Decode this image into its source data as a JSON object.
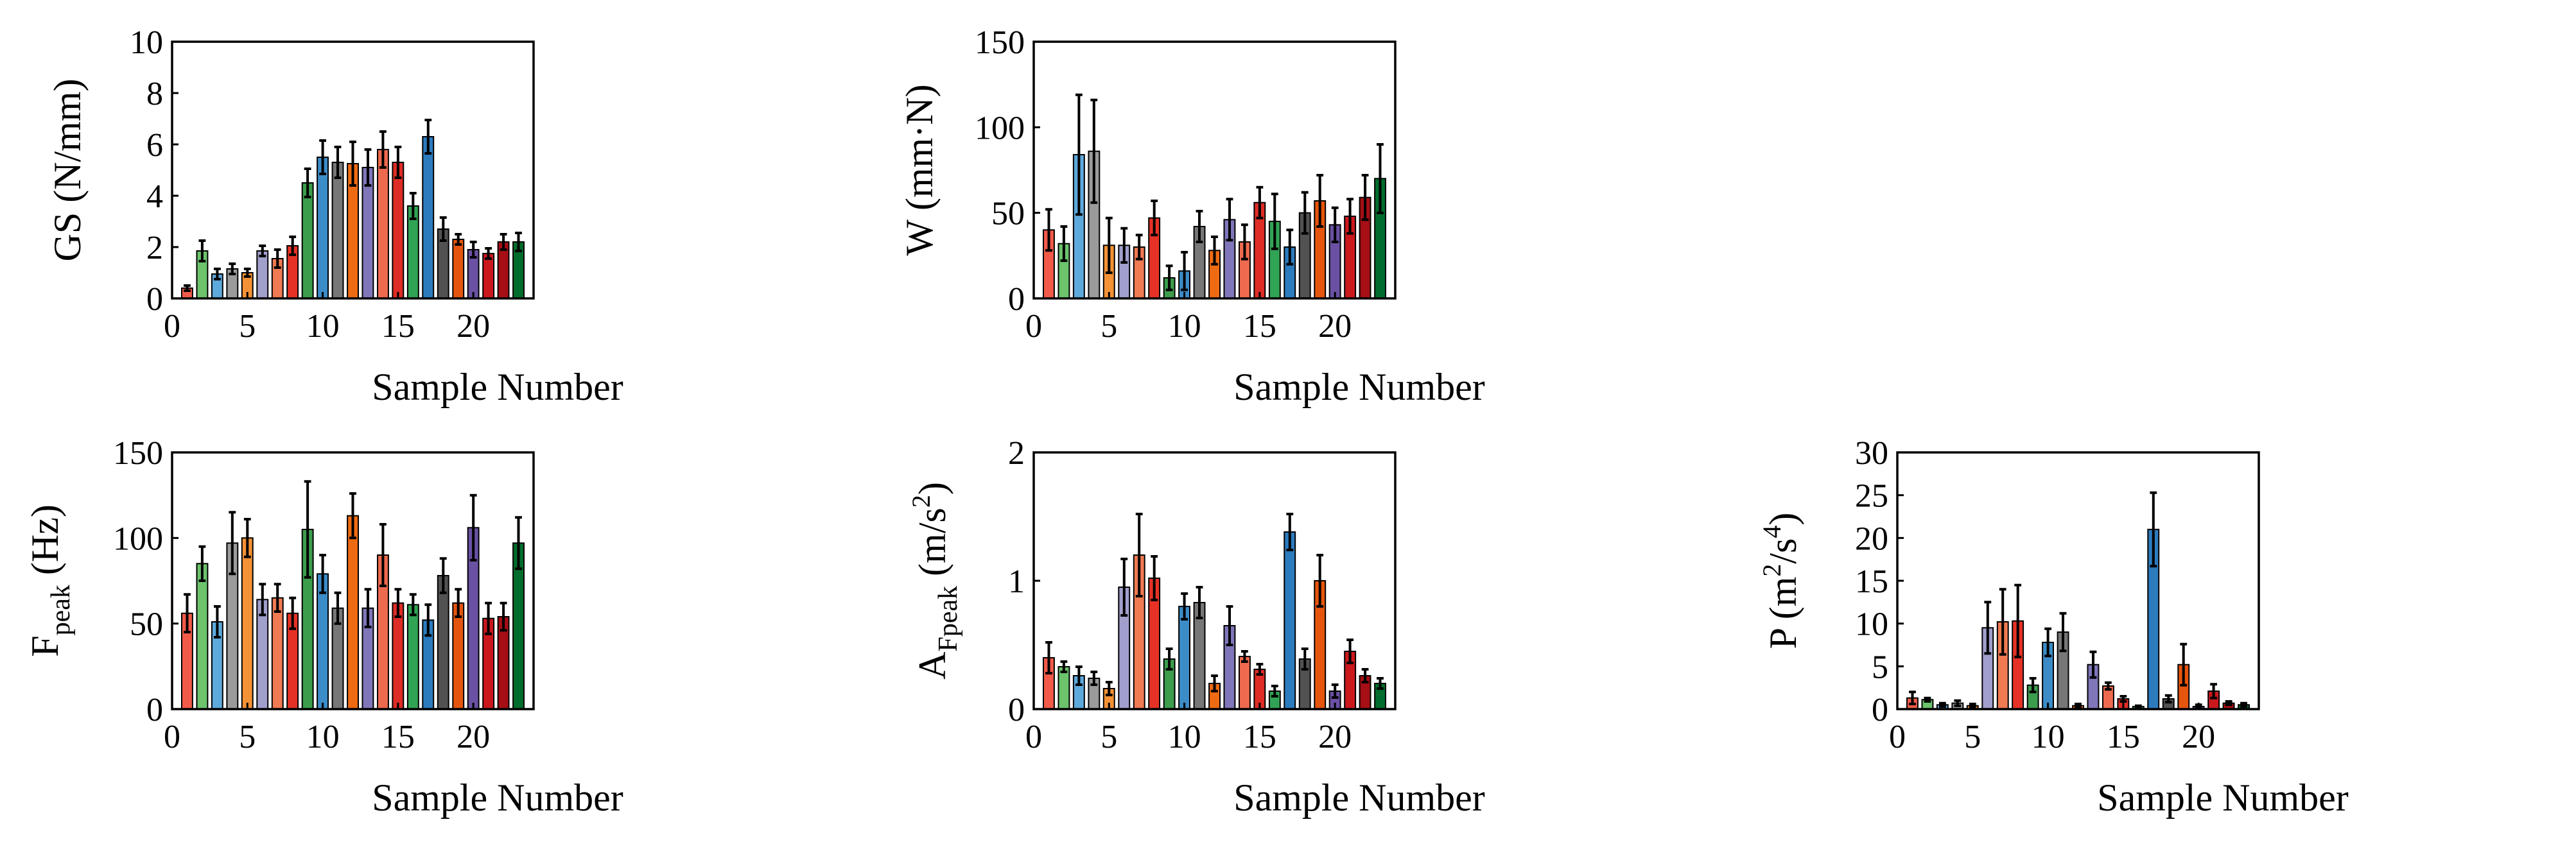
{
  "colors": {
    "palette": [
      "#f15a49",
      "#6cc36c",
      "#5ea9dc",
      "#9b9b9b",
      "#f59235",
      "#a19fcc",
      "#f07a52",
      "#e63226",
      "#3c9d4d",
      "#3c8cc8",
      "#777777",
      "#ef6b13",
      "#7f77ba",
      "#ee6a4e",
      "#de2d26",
      "#31a354",
      "#2c7bbd",
      "#525252",
      "#e6550d",
      "#6a51a3",
      "#cb181d",
      "#a50f15",
      "#006d2c"
    ]
  },
  "chart_data": [
    {
      "id": "gs",
      "type": "bar",
      "title": "",
      "xlabel": "Sample Number",
      "ylabel": "GS (N/mm)",
      "xlim": [
        0,
        24
      ],
      "ylim": [
        0,
        10
      ],
      "xticks": [
        "0",
        "5",
        "10",
        "15",
        "20"
      ],
      "yticks": [
        "0",
        "2",
        "4",
        "6",
        "8",
        "10"
      ],
      "x": [
        1,
        2,
        3,
        4,
        5,
        6,
        7,
        8,
        9,
        10,
        11,
        12,
        13,
        14,
        15,
        16,
        17,
        18,
        19,
        20,
        21,
        22,
        23
      ],
      "values": [
        0.4,
        1.85,
        0.95,
        1.15,
        1.0,
        1.85,
        1.55,
        2.05,
        4.5,
        5.5,
        5.3,
        5.25,
        5.1,
        5.8,
        5.3,
        3.6,
        6.3,
        2.7,
        2.3,
        1.9,
        1.75,
        2.2,
        2.2
      ],
      "errors": [
        0.1,
        0.4,
        0.2,
        0.2,
        0.15,
        0.2,
        0.35,
        0.35,
        0.55,
        0.65,
        0.6,
        0.85,
        0.7,
        0.7,
        0.6,
        0.5,
        0.65,
        0.45,
        0.2,
        0.3,
        0.2,
        0.3,
        0.35
      ]
    },
    {
      "id": "w",
      "type": "bar",
      "title": "",
      "xlabel": "Sample Number",
      "ylabel": "W (mm·N)",
      "xlim": [
        0,
        24
      ],
      "ylim": [
        0,
        150
      ],
      "xticks": [
        "0",
        "5",
        "10",
        "15",
        "20"
      ],
      "yticks": [
        "0",
        "50",
        "100",
        "150"
      ],
      "x": [
        1,
        2,
        3,
        4,
        5,
        6,
        7,
        8,
        9,
        10,
        11,
        12,
        13,
        14,
        15,
        16,
        17,
        18,
        19,
        20,
        21,
        22,
        23
      ],
      "values": [
        40,
        32,
        84,
        86,
        31,
        31,
        30,
        47,
        12,
        16,
        42,
        28,
        46,
        33,
        56,
        45,
        30,
        50,
        57,
        43,
        48,
        59,
        70
      ],
      "errors": [
        12,
        10,
        35,
        30,
        16,
        10,
        7,
        10,
        7,
        11,
        9,
        8,
        12,
        10,
        9,
        16,
        10,
        12,
        15,
        10,
        10,
        13,
        20
      ]
    },
    {
      "id": "fpeak",
      "type": "bar",
      "title": "",
      "xlabel": "Sample Number",
      "ylabel": "F_peak (Hz)",
      "ylabel_main": "F",
      "ylabel_sub": "peak",
      "ylabel_unit": " (Hz)",
      "xlim": [
        0,
        24
      ],
      "ylim": [
        0,
        150
      ],
      "xticks": [
        "0",
        "5",
        "10",
        "15",
        "20"
      ],
      "yticks": [
        "0",
        "50",
        "100",
        "150"
      ],
      "x": [
        1,
        2,
        3,
        4,
        5,
        6,
        7,
        8,
        9,
        10,
        11,
        12,
        13,
        14,
        15,
        16,
        17,
        18,
        19,
        20,
        21,
        22,
        23
      ],
      "values": [
        56,
        85,
        51,
        97,
        100,
        64,
        65,
        56,
        105,
        79,
        59,
        113,
        59,
        90,
        62,
        61,
        52,
        78,
        62,
        106,
        53,
        54,
        97
      ],
      "errors": [
        11,
        10,
        9,
        18,
        11,
        9,
        8,
        9,
        28,
        11,
        9,
        13,
        11,
        18,
        8,
        6,
        9,
        10,
        8,
        19,
        9,
        8,
        15
      ]
    },
    {
      "id": "afpeak",
      "type": "bar",
      "title": "",
      "xlabel": "Sample Number",
      "ylabel": "A_Fpeak (m/s^2)",
      "ylabel_main": "A",
      "ylabel_sub": "Fpeak",
      "ylabel_unit_pre": " (m/s",
      "ylabel_sup": "2",
      "ylabel_unit_post": ")",
      "xlim": [
        0,
        24
      ],
      "ylim": [
        0,
        2
      ],
      "xticks": [
        "0",
        "5",
        "10",
        "15",
        "20"
      ],
      "yticks": [
        "0",
        "1",
        "2"
      ],
      "x": [
        1,
        2,
        3,
        4,
        5,
        6,
        7,
        8,
        9,
        10,
        11,
        12,
        13,
        14,
        15,
        16,
        17,
        18,
        19,
        20,
        21,
        22,
        23
      ],
      "values": [
        0.4,
        0.33,
        0.26,
        0.24,
        0.16,
        0.95,
        1.2,
        1.02,
        0.39,
        0.8,
        0.83,
        0.2,
        0.65,
        0.41,
        0.31,
        0.14,
        1.38,
        0.39,
        1.0,
        0.14,
        0.45,
        0.26,
        0.2
      ],
      "errors": [
        0.12,
        0.04,
        0.07,
        0.05,
        0.05,
        0.22,
        0.32,
        0.17,
        0.08,
        0.1,
        0.12,
        0.06,
        0.15,
        0.04,
        0.04,
        0.04,
        0.14,
        0.08,
        0.2,
        0.05,
        0.09,
        0.05,
        0.04
      ]
    },
    {
      "id": "p",
      "type": "bar",
      "title": "",
      "xlabel": "Sample Number",
      "ylabel": "P (m^2/s^4)",
      "ylabel_pre": "P (m",
      "ylabel_sup1": "2",
      "ylabel_mid": "/s",
      "ylabel_sup2": "4",
      "ylabel_post": ")",
      "xlim": [
        0,
        24
      ],
      "ylim": [
        0,
        30
      ],
      "xticks": [
        "0",
        "5",
        "10",
        "15",
        "20"
      ],
      "yticks": [
        "0",
        "5",
        "10",
        "15",
        "20",
        "25",
        "30"
      ],
      "x": [
        1,
        2,
        3,
        4,
        5,
        6,
        7,
        8,
        9,
        10,
        11,
        12,
        13,
        14,
        15,
        16,
        17,
        18,
        19,
        20,
        21,
        22,
        23
      ],
      "values": [
        1.3,
        1.1,
        0.5,
        0.7,
        0.4,
        9.5,
        10.2,
        10.3,
        2.8,
        7.8,
        9.0,
        0.4,
        5.2,
        2.7,
        1.2,
        0.3,
        21.0,
        1.2,
        5.2,
        0.3,
        2.1,
        0.7,
        0.5
      ],
      "errors": [
        0.7,
        0.2,
        0.2,
        0.3,
        0.2,
        3.0,
        3.8,
        4.2,
        0.8,
        1.6,
        2.2,
        0.2,
        1.5,
        0.4,
        0.3,
        0.1,
        4.3,
        0.4,
        2.4,
        0.2,
        0.8,
        0.2,
        0.2
      ]
    }
  ]
}
